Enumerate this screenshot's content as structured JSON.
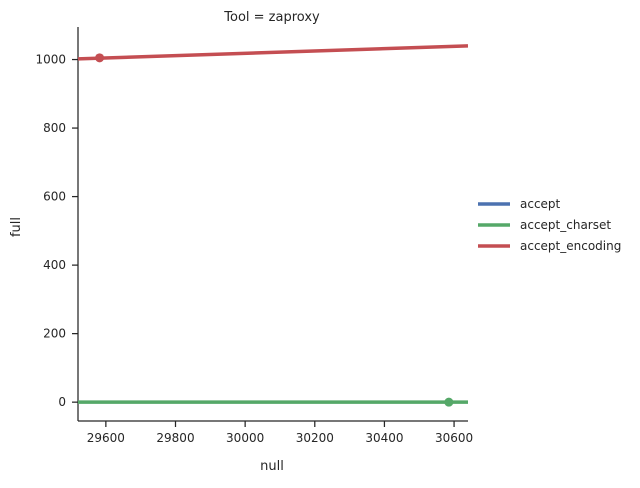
{
  "chart_data": {
    "type": "line",
    "title": "Tool = zaproxy",
    "xlabel": "null",
    "ylabel": "full",
    "xlim": [
      29520,
      30640
    ],
    "ylim": [
      -55,
      1095
    ],
    "xticks": [
      29600,
      29800,
      30000,
      30200,
      30400,
      30600
    ],
    "yticks": [
      0,
      200,
      400,
      600,
      800,
      1000
    ],
    "grid": false,
    "legend_position": "right",
    "series": [
      {
        "name": "accept",
        "color": "#4c72b0",
        "points": [],
        "fit": []
      },
      {
        "name": "accept_charset",
        "color": "#55a868",
        "points": [
          [
            30585,
            0
          ]
        ],
        "fit": [
          [
            29520,
            0
          ],
          [
            30640,
            0
          ]
        ]
      },
      {
        "name": "accept_encoding",
        "color": "#c44e52",
        "points": [
          [
            29582,
            1005
          ]
        ],
        "fit": [
          [
            29520,
            1002
          ],
          [
            30640,
            1040
          ]
        ]
      }
    ]
  }
}
